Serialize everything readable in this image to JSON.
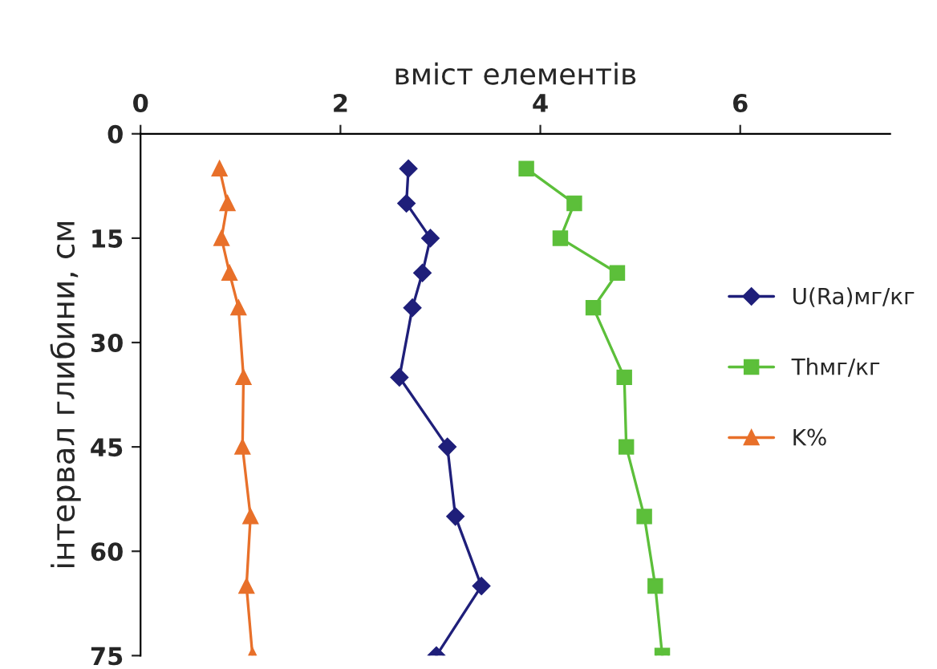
{
  "chart_data": {
    "type": "line",
    "xlabel": "вміст елементів",
    "ylabel": "інтервал глибини, см",
    "xlim": [
      0,
      7.5
    ],
    "xticks": [
      0,
      2,
      4,
      6
    ],
    "ylim": [
      75,
      0
    ],
    "yticks": [
      0,
      15,
      30,
      45,
      60,
      75
    ],
    "grid": false,
    "legend": "right",
    "series": [
      {
        "name": "U(Ra)мг/кг",
        "color": "#1f1f7a",
        "marker": "diamond",
        "x": [
          2.68,
          2.66,
          2.9,
          2.82,
          2.72,
          2.59,
          3.07,
          3.15,
          3.41,
          2.96
        ],
        "values": [
          5,
          10,
          15,
          20,
          25,
          35,
          45,
          55,
          65,
          75
        ]
      },
      {
        "name": "Thмг/кг",
        "color": "#5cbf3a",
        "marker": "square",
        "x": [
          3.86,
          4.34,
          4.2,
          4.77,
          4.53,
          4.84,
          4.86,
          5.04,
          5.15,
          5.22
        ],
        "values": [
          5,
          10,
          15,
          20,
          25,
          35,
          45,
          55,
          65,
          75
        ]
      },
      {
        "name": "K%",
        "color": "#e8702a",
        "marker": "triangle",
        "x": [
          0.79,
          0.87,
          0.81,
          0.89,
          0.98,
          1.03,
          1.02,
          1.1,
          1.06,
          1.12
        ],
        "values": [
          5,
          10,
          15,
          20,
          25,
          35,
          45,
          55,
          65,
          75
        ]
      }
    ]
  }
}
